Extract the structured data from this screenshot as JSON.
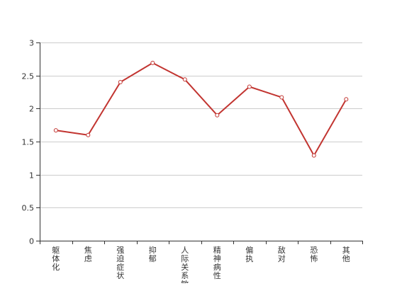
{
  "chart_data": {
    "type": "line",
    "title": "",
    "xlabel": "",
    "ylabel": "",
    "ylim": [
      0,
      3
    ],
    "y_ticks": [
      "0",
      "0.5",
      "1",
      "1.5",
      "2",
      "2.5",
      "3"
    ],
    "categories": [
      "躯体化",
      "焦虑",
      "强迫症状",
      "抑郁",
      "人际关系敏感",
      "精神病性",
      "偏执",
      "敌对",
      "恐怖",
      "其他"
    ],
    "series": [
      {
        "values": [
          1.67,
          1.6,
          2.4,
          2.69,
          2.44,
          1.9,
          2.33,
          2.17,
          1.29,
          2.14
        ]
      }
    ],
    "grid": true,
    "colors": {
      "line": "#c23531",
      "grid": "#cccccc",
      "axis": "#333333",
      "marker_fill": "#ffffff"
    }
  }
}
